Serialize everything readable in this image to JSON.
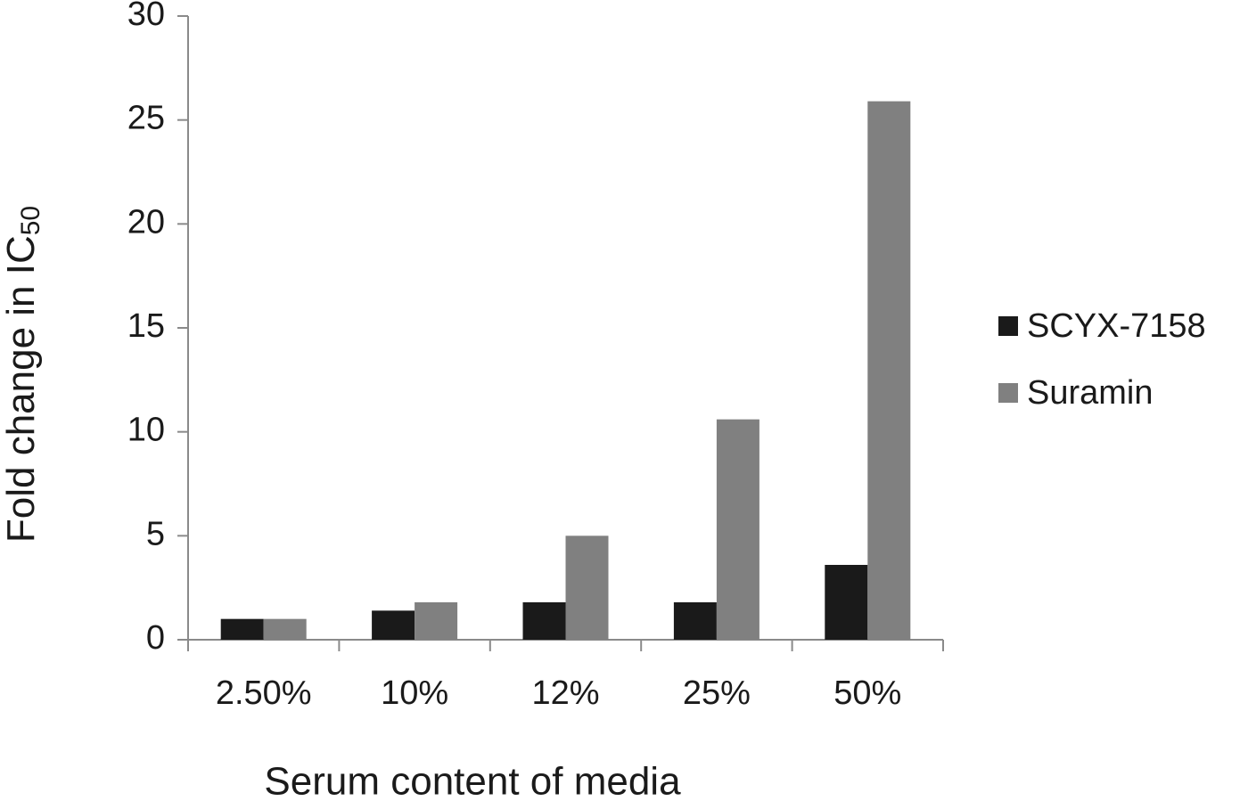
{
  "chart_data": {
    "type": "bar",
    "x_label": "Serum content of media",
    "y_label": "Fold change in IC",
    "y_label_subscript": "50",
    "categories": [
      "2.50%",
      "10%",
      "12%",
      "25%",
      "50%"
    ],
    "series": [
      {
        "name": "SCYX-7158",
        "color": "#1a1a1a",
        "values": [
          1,
          1.4,
          1.8,
          1.8,
          3.6
        ]
      },
      {
        "name": "Suramin",
        "color": "#808080",
        "values": [
          1,
          1.8,
          5.0,
          10.6,
          25.9
        ]
      }
    ],
    "ylim": [
      0,
      30
    ],
    "yticks": [
      0,
      5,
      10,
      15,
      20,
      25,
      30
    ],
    "legend": "right"
  }
}
